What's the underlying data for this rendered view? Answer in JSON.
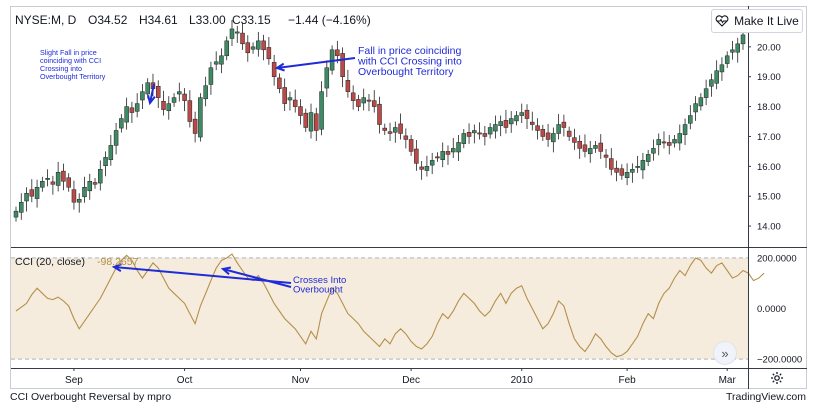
{
  "header": {
    "symbol": "NYSE:M, D",
    "open": "O34.52",
    "high": "H34.61",
    "low": "L33.00",
    "close": "C33.15",
    "change": "−1.44 (−4.16%)"
  },
  "make_live_label": "Make It Live",
  "footer": {
    "caption": "CCI Overbought Reversal by mpro",
    "brand": "TradingView.com"
  },
  "colors": {
    "up": "#3e8a64",
    "down": "#b94a48",
    "cci": "#b58f4a",
    "band_fill": "#f5ecde",
    "annotation": "#1f2bd6",
    "last_price": "#4caf7d"
  },
  "icons": {
    "make_live": "heartbeat-icon",
    "scroll": "double-chevron-right-icon",
    "settings": "gear-icon"
  },
  "chart_data": [
    {
      "type": "candlestick",
      "price_labels": [
        "20.00",
        "19.00",
        "18.00",
        "17.00",
        "16.00",
        "15.00",
        "14.00"
      ],
      "ylim": [
        13.3,
        21.3
      ],
      "x_ticks": [
        {
          "label": "Sep",
          "index": 11
        },
        {
          "label": "Oct",
          "index": 32
        },
        {
          "label": "Nov",
          "index": 54
        },
        {
          "label": "Dec",
          "index": 75
        },
        {
          "label": "2010",
          "index": 96
        },
        {
          "label": "Feb",
          "index": 116
        },
        {
          "label": "Mar",
          "index": 135
        }
      ],
      "x_count": 139,
      "closes": [
        14.5,
        14.8,
        15.1,
        15.0,
        15.3,
        15.5,
        15.6,
        15.4,
        15.8,
        15.5,
        15.3,
        14.8,
        14.9,
        15.3,
        15.5,
        15.4,
        15.9,
        16.3,
        16.7,
        17.2,
        17.6,
        18.0,
        17.8,
        18.1,
        18.5,
        18.8,
        18.6,
        18.3,
        17.9,
        18.1,
        18.3,
        18.5,
        18.2,
        17.5,
        17.1,
        18.3,
        18.7,
        19.3,
        19.5,
        19.7,
        20.2,
        20.6,
        20.5,
        20.1,
        19.8,
        20.0,
        20.2,
        19.9,
        19.6,
        19.0,
        18.6,
        18.1,
        18.3,
        18.0,
        17.7,
        17.3,
        17.8,
        17.2,
        18.5,
        19.3,
        19.9,
        19.7,
        19.0,
        18.5,
        18.2,
        18.0,
        18.3,
        18.2,
        18.0,
        17.4,
        17.2,
        17.1,
        17.3,
        17.1,
        16.9,
        16.5,
        16.1,
        15.9,
        16.0,
        16.2,
        16.3,
        16.5,
        16.4,
        16.6,
        16.8,
        17.1,
        17.0,
        17.2,
        17.1,
        17.0,
        17.3,
        17.4,
        17.5,
        17.3,
        17.6,
        17.7,
        17.8,
        17.6,
        17.4,
        17.2,
        17.0,
        16.9,
        17.1,
        17.4,
        17.3,
        17.0,
        16.8,
        16.6,
        16.5,
        16.6,
        16.7,
        16.5,
        16.3,
        15.9,
        15.8,
        15.7,
        15.8,
        15.9,
        16.0,
        16.2,
        16.4,
        16.6,
        16.9,
        16.8,
        16.7,
        16.9,
        17.1,
        17.4,
        17.7,
        18.1,
        18.3,
        18.6,
        18.9,
        19.2,
        19.4,
        19.7,
        19.9,
        20.1,
        20.4
      ],
      "last_price_label": ""
    },
    {
      "type": "line",
      "title": "CCI (20, close)",
      "last_value": "-98.2657",
      "y_labels": [
        "200.0000",
        "0.0000",
        "−200.0000"
      ],
      "ylim": [
        -235,
        235
      ],
      "bands": [
        200,
        -200
      ],
      "x_count": 139,
      "values": [
        -10,
        5,
        20,
        55,
        80,
        60,
        40,
        35,
        45,
        30,
        10,
        -40,
        -80,
        -50,
        -20,
        10,
        40,
        80,
        120,
        160,
        190,
        210,
        190,
        150,
        120,
        150,
        180,
        160,
        120,
        80,
        60,
        40,
        20,
        -20,
        -60,
        10,
        60,
        110,
        160,
        190,
        200,
        215,
        180,
        150,
        120,
        110,
        130,
        100,
        60,
        20,
        -10,
        -40,
        -60,
        -80,
        -110,
        -140,
        -90,
        -120,
        -20,
        30,
        80,
        60,
        20,
        -20,
        -40,
        -60,
        -90,
        -110,
        -130,
        -150,
        -120,
        -140,
        -100,
        -80,
        -100,
        -130,
        -150,
        -160,
        -140,
        -110,
        -60,
        -20,
        -40,
        -10,
        30,
        60,
        40,
        20,
        -10,
        -30,
        -10,
        30,
        60,
        20,
        60,
        80,
        90,
        40,
        0,
        -40,
        -80,
        -60,
        -20,
        30,
        10,
        -60,
        -120,
        -150,
        -170,
        -140,
        -100,
        -120,
        -150,
        -175,
        -190,
        -185,
        -170,
        -140,
        -110,
        -60,
        -20,
        -40,
        20,
        60,
        80,
        120,
        150,
        130,
        170,
        200,
        190,
        160,
        140,
        170,
        180,
        150,
        120,
        130,
        150,
        140,
        110,
        120,
        140
      ]
    }
  ],
  "annotations": [
    {
      "text": "Slight Fall in price coinciding with CCI Crossing into Overbought Territory"
    },
    {
      "text": "Fall in price coinciding with CCI Crossing into Overbought Territory"
    },
    {
      "text": "Crosses Into Overbought"
    }
  ]
}
